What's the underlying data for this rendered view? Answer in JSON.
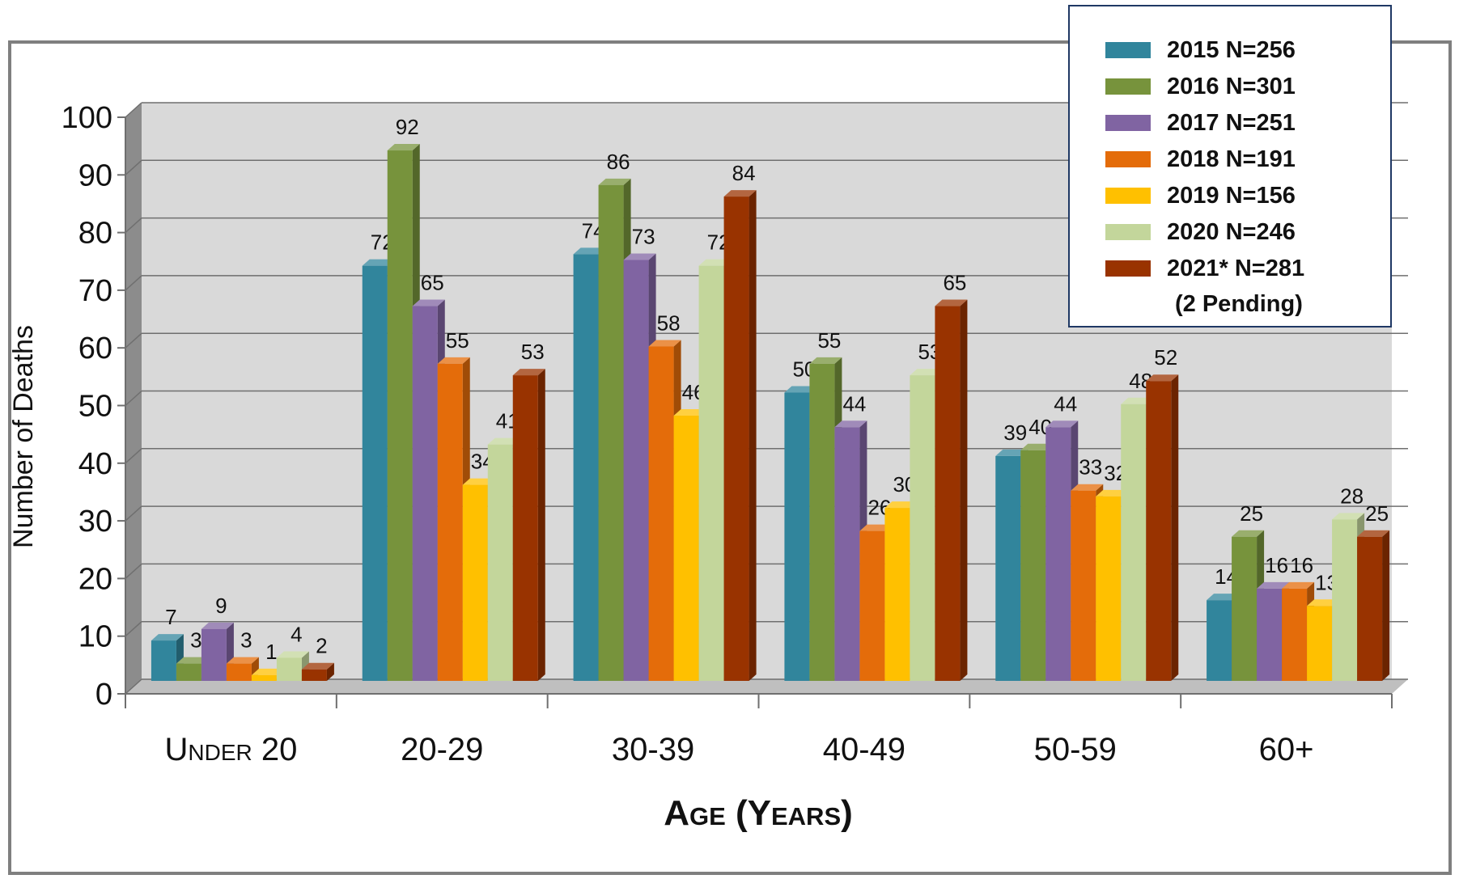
{
  "chart_data": {
    "type": "bar",
    "title": "",
    "xlabel": "Age (Years)",
    "ylabel": "Number of Deaths",
    "ylim": [
      0,
      100
    ],
    "yticks": [
      "0",
      "10",
      "20",
      "30",
      "40",
      "50",
      "60",
      "70",
      "80",
      "90",
      "100"
    ],
    "categories": [
      "Under 20",
      "20-29",
      "30-39",
      "40-49",
      "50-59",
      "60+"
    ],
    "grid": true,
    "legend_position": "top-right",
    "series": [
      {
        "name": "2015 N=256",
        "color": "#31859c",
        "values": [
          7,
          72,
          74,
          50,
          39,
          14
        ]
      },
      {
        "name": "2016 N=301",
        "color": "#77933c",
        "values": [
          3,
          92,
          86,
          55,
          40,
          25
        ]
      },
      {
        "name": "2017 N=251",
        "color": "#8064a2",
        "values": [
          9,
          65,
          73,
          44,
          44,
          16
        ]
      },
      {
        "name": "2018 N=191",
        "color": "#e46c0a",
        "values": [
          3,
          55,
          58,
          26,
          33,
          16
        ]
      },
      {
        "name": "2019 N=156",
        "color": "#ffc000",
        "values": [
          1,
          34,
          46,
          30,
          32,
          13
        ]
      },
      {
        "name": "2020 N=246",
        "color": "#c3d69b",
        "values": [
          4,
          41,
          72,
          53,
          48,
          28
        ]
      },
      {
        "name": "2021* N=281",
        "color": "#993300",
        "values": [
          2,
          53,
          84,
          65,
          52,
          25
        ]
      }
    ],
    "legend_note": "(2 Pending)"
  }
}
